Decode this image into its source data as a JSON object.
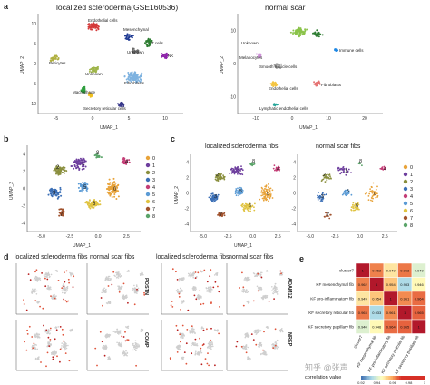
{
  "panel_a": {
    "letter": "a",
    "left_title": "localized scleroderma(GSE160536)",
    "right_title": "normal scar",
    "xlabel": "UMAP_1",
    "ylabel": "UMAP_2",
    "left_xticks": [
      "-5",
      "0",
      "5",
      "10"
    ],
    "left_yticks": [
      "10",
      "5",
      "0",
      "-5",
      "-10"
    ],
    "right_xticks": [
      "-10",
      "0",
      "10",
      "20"
    ],
    "right_yticks": [
      "10",
      "0",
      "-10"
    ],
    "left_labels": [
      "Endothelial cells",
      "Mesenchymal",
      "Unknown",
      "T cells",
      "NK",
      "Pericytes",
      "Unknown",
      "Fibroblasts",
      "Macrophage",
      "Secretory reticular cells"
    ],
    "right_labels": [
      "Unknown",
      "Melanocytes",
      "Immune cells",
      "Smooth muscle cells",
      "Endothelial cells",
      "Fibroblasts",
      "Lymphatic endothelial cells"
    ]
  },
  "panel_b": {
    "letter": "b",
    "xlabel": "UMAP_1",
    "ylabel": "UMAP_2",
    "xticks": [
      "-5.0",
      "-2.5",
      "0.0",
      "2.5"
    ],
    "yticks": [
      "4",
      "2",
      "0",
      "-2",
      "-4"
    ],
    "cluster_labels": [
      "0",
      "1",
      "2",
      "3",
      "4",
      "5",
      "6",
      "7",
      "8"
    ],
    "legend": [
      "0",
      "1",
      "2",
      "3",
      "4",
      "5",
      "6",
      "7",
      "8"
    ]
  },
  "panel_c": {
    "letter": "c",
    "left_title": "localized scleroderma fibs",
    "right_title": "normal scar fibs",
    "xlabel": "UMAP_1",
    "ylabel": "UMAP_2",
    "xticks": [
      "-5.0",
      "-2.5",
      "0.0",
      "2.5"
    ],
    "yticks": [
      "4",
      "2",
      "0",
      "-2",
      "-4"
    ],
    "legend": [
      "0",
      "1",
      "2",
      "3",
      "4",
      "5",
      "6",
      "7",
      "8"
    ]
  },
  "cluster_colors": [
    "#e8a33a",
    "#6e3f9e",
    "#8a8f3e",
    "#3b6fb6",
    "#c43e77",
    "#5b9bd5",
    "#e0c341",
    "#a0522d",
    "#5aa469"
  ],
  "panel_d": {
    "letter": "d",
    "titles": [
      "localized scleroderma fibs",
      "normal scar fibs",
      "localized scleroderma fibs",
      "normal scar fibs"
    ],
    "genes": [
      "POSTN",
      "COMP",
      "ADAM12",
      "NREP"
    ],
    "ylabel": "UMAP_2",
    "xlabel": "UMAP_1"
  },
  "panel_e": {
    "letter": "e",
    "rows": [
      "cluster7",
      "KF mesenchymal fib",
      "KF pro-inflammatory fib",
      "KF secretory reticular fib",
      "KF secretory papillary fib"
    ],
    "cols": [
      "cluster7",
      "KF mesenchymal fib",
      "KF pro-inflammatory fib",
      "KF secretory reticular fib",
      "KF secretory papillary fib"
    ],
    "matrix": [
      [
        1,
        0.962,
        0.949,
        0.963,
        0.94
      ],
      [
        0.962,
        1,
        0.954,
        0.933,
        0.946
      ],
      [
        0.949,
        0.954,
        1,
        0.961,
        0.964
      ],
      [
        0.963,
        0.933,
        0.961,
        1,
        0.965
      ],
      [
        0.94,
        0.946,
        0.964,
        0.965,
        1
      ]
    ],
    "labels": [
      [
        "1",
        "0.962",
        "0.949",
        "0.963",
        "0.940"
      ],
      [
        "0.962",
        "1",
        "0.954",
        "0.933",
        "0.946"
      ],
      [
        "0.949",
        "0.954",
        "1",
        "0.961",
        "0.964"
      ],
      [
        "0.963",
        "0.933",
        "0.961",
        "1",
        "0.965"
      ],
      [
        "0.940",
        "0.946",
        "0.964",
        "0.965",
        "1"
      ]
    ],
    "colorbar_label": "correlation value",
    "colorbar_ticks": [
      "0.92",
      "0.94",
      "0.96",
      "0.98",
      "1"
    ]
  },
  "watermark": "知乎 @张声"
}
